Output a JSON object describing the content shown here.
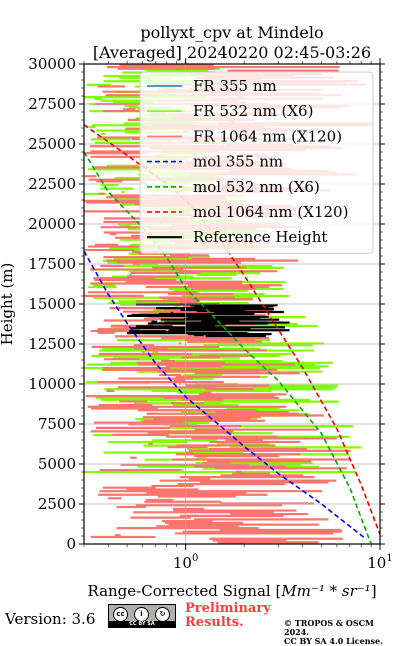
{
  "chart_data": {
    "type": "line",
    "title_line1": "pollyxt_cpv at Mindelo",
    "title_line2": "[Averaged] 20240220 02:45-03:26",
    "xlabel_text": "Range-Corrected Signal [",
    "xlabel_math": "Mm⁻¹ * sr⁻¹",
    "xlabel_close": "]",
    "ylabel": "Height (m)",
    "xscale": "log",
    "xlim": [
      0.3,
      10
    ],
    "ylim": [
      0,
      30000
    ],
    "xticks": [
      {
        "value": 1,
        "label": "10",
        "exp": "0"
      },
      {
        "value": 10,
        "label": "10",
        "exp": "1"
      }
    ],
    "yticks": [
      "0",
      "2500",
      "5000",
      "7500",
      "10000",
      "12500",
      "15000",
      "17500",
      "20000",
      "22500",
      "25000",
      "27500",
      "30000"
    ],
    "grid": true,
    "legend_position": "top-right",
    "legend": [
      {
        "label": "FR 355 nm",
        "color": "#1f77b4",
        "style": "solid"
      },
      {
        "label": "FR 532 nm (X6)",
        "color": "#80ff00",
        "style": "solid"
      },
      {
        "label": "FR 1064 nm (X120)",
        "color": "#f8766d",
        "style": "solid"
      },
      {
        "label": "mol 355 nm",
        "color": "#0000ff",
        "style": "dashed"
      },
      {
        "label": "mol 532 nm (X6)",
        "color": "#00aa00",
        "style": "dashed"
      },
      {
        "label": "mol 1064 nm (X120)",
        "color": "#ee0000",
        "style": "dashed"
      },
      {
        "label": "Reference Height",
        "color": "#000000",
        "style": "solid"
      }
    ],
    "series": [
      {
        "name": "mol 355 nm",
        "points": [
          [
            0.3,
            18300
          ],
          [
            0.4,
            15600
          ],
          [
            0.5,
            13800
          ],
          [
            0.7,
            11300
          ],
          [
            1.0,
            9200
          ],
          [
            1.5,
            7400
          ],
          [
            2.0,
            6100
          ],
          [
            3.0,
            4400
          ],
          [
            5.0,
            2500
          ],
          [
            7.0,
            1100
          ],
          [
            8.5,
            300
          ]
        ]
      },
      {
        "name": "mol 532 nm (X6)",
        "points": [
          [
            0.3,
            24500
          ],
          [
            0.4,
            22000
          ],
          [
            0.6,
            19800
          ],
          [
            0.8,
            17900
          ],
          [
            1.0,
            16000
          ],
          [
            1.5,
            13800
          ],
          [
            2.0,
            12200
          ],
          [
            3.0,
            10200
          ],
          [
            5.0,
            6900
          ],
          [
            7.0,
            3500
          ],
          [
            9.0,
            0
          ]
        ]
      },
      {
        "name": "mol 1064 nm (X120)",
        "points": [
          [
            0.3,
            26200
          ],
          [
            0.5,
            24300
          ],
          [
            0.8,
            22500
          ],
          [
            1.0,
            21500
          ],
          [
            1.5,
            19000
          ],
          [
            2.0,
            16800
          ],
          [
            3.0,
            13400
          ],
          [
            4.0,
            11000
          ],
          [
            6.0,
            7200
          ],
          [
            8.0,
            3700
          ],
          [
            10.0,
            600
          ]
        ]
      },
      {
        "name": "FR 532 nm (X6)",
        "band": {
          "y_from": 4500,
          "y_to": 30000,
          "x_min": 0.3,
          "x_max_profile": [
            [
              0,
              8
            ],
            [
              5000,
              10
            ],
            [
              10000,
              7
            ],
            [
              15000,
              4
            ],
            [
              20000,
              2.5
            ],
            [
              25000,
              2
            ],
            [
              30000,
              1.5
            ]
          ]
        }
      },
      {
        "name": "FR 1064 nm (X120)",
        "band": {
          "y_from": 0,
          "y_to": 30000,
          "x_min": 0.3,
          "x_max_profile": [
            [
              0,
              9
            ],
            [
              5000,
              8
            ],
            [
              10000,
              4
            ],
            [
              15000,
              3
            ],
            [
              20000,
              5
            ],
            [
              25000,
              10
            ],
            [
              30000,
              10
            ]
          ]
        }
      },
      {
        "name": "Reference Height",
        "band": {
          "y_from": 13000,
          "y_to": 15000,
          "x_min": 0.5,
          "x_max": 3.5
        }
      }
    ]
  },
  "footer": {
    "version": "Version: 3.6",
    "license_badge": "CC BY SA",
    "preliminary_line1": "Preliminary",
    "preliminary_line2": "Results.",
    "copyright_line1": "© TROPOS & OSCM 2024.",
    "copyright_line2": "CC BY SA 4.0 License."
  }
}
